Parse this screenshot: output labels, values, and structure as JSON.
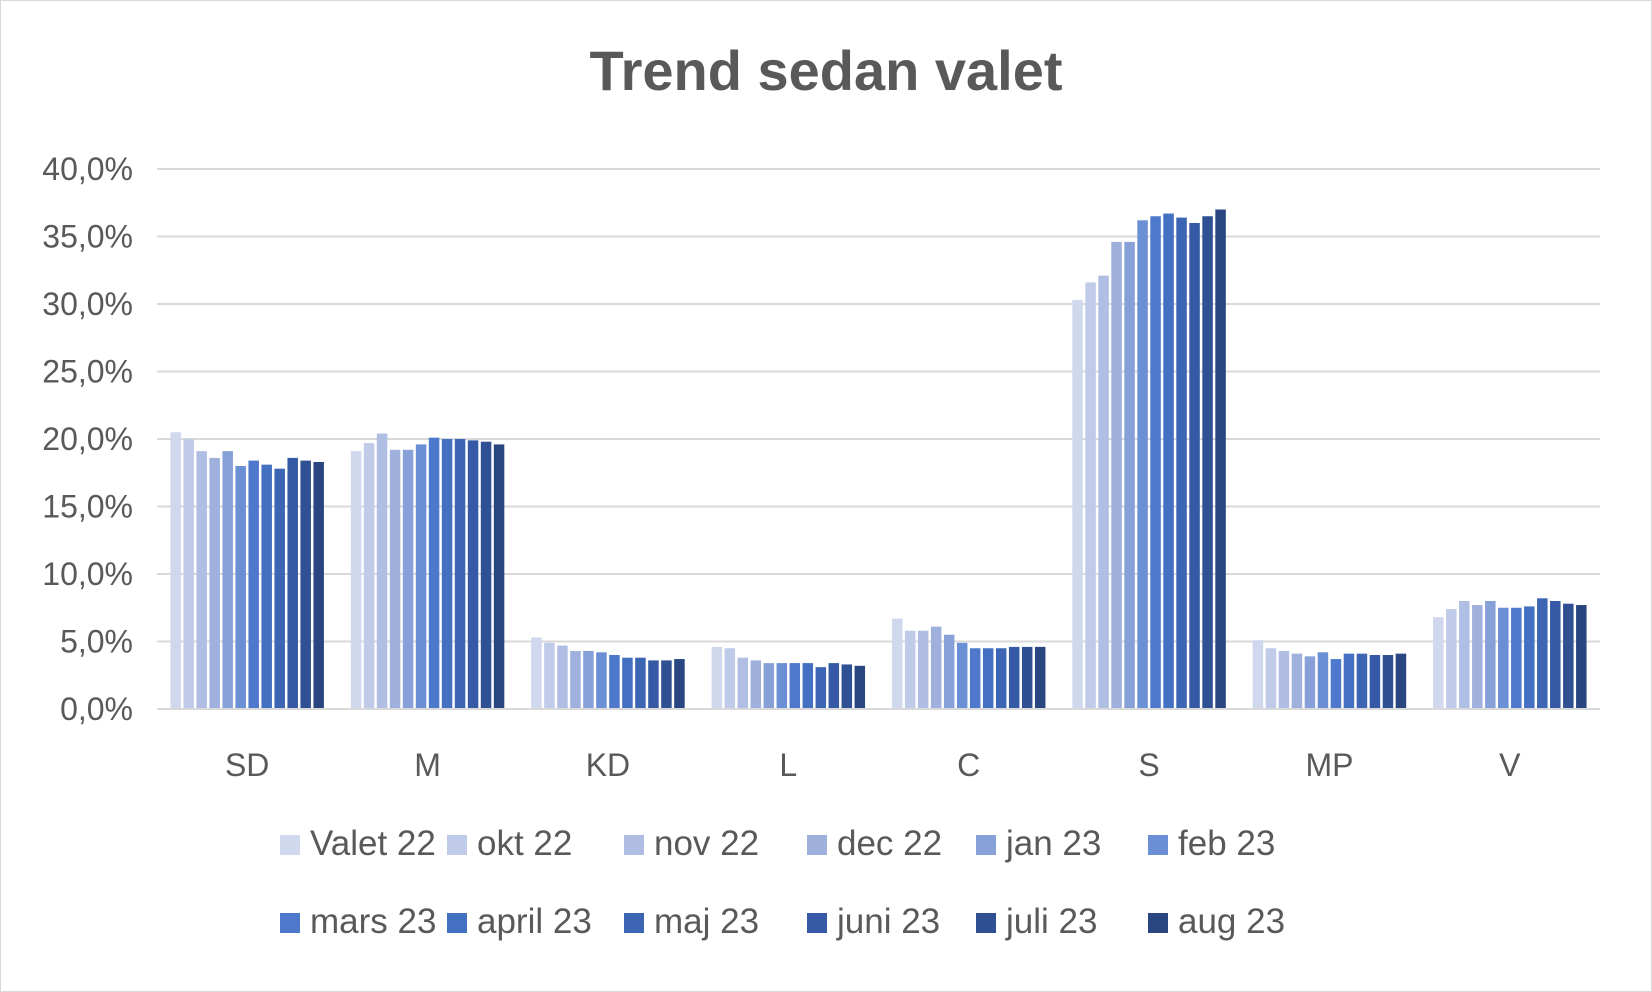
{
  "chart_data": {
    "type": "bar",
    "title": "Trend sedan valet",
    "categories": [
      "SD",
      "M",
      "KD",
      "L",
      "C",
      "S",
      "MP",
      "V"
    ],
    "ylim": [
      0,
      40
    ],
    "yticks": [
      "0,0%",
      "5,0%",
      "10,0%",
      "15,0%",
      "20,0%",
      "25,0%",
      "30,0%",
      "35,0%",
      "40,0%"
    ],
    "grid": true,
    "legend_position": "bottom",
    "series": [
      {
        "name": "Valet 22",
        "color": "#d0d8ee",
        "values": [
          20.5,
          19.1,
          5.3,
          4.6,
          6.7,
          30.3,
          5.1,
          6.8
        ]
      },
      {
        "name": "okt 22",
        "color": "#c0cbe9",
        "values": [
          20.0,
          19.7,
          4.9,
          4.5,
          5.8,
          31.6,
          4.5,
          7.4
        ]
      },
      {
        "name": "nov 22",
        "color": "#b0bee3",
        "values": [
          19.1,
          20.4,
          4.7,
          3.8,
          5.8,
          32.1,
          4.3,
          8.0
        ]
      },
      {
        "name": "dec 22",
        "color": "#9fb0dd",
        "values": [
          18.6,
          19.2,
          4.3,
          3.6,
          6.1,
          34.6,
          4.1,
          7.7
        ]
      },
      {
        "name": "jan 23",
        "color": "#87a0d8",
        "values": [
          19.1,
          19.2,
          4.3,
          3.4,
          5.5,
          34.6,
          3.9,
          8.0
        ]
      },
      {
        "name": "feb 23",
        "color": "#6b8fd4",
        "values": [
          18.0,
          19.6,
          4.2,
          3.4,
          4.9,
          36.2,
          4.2,
          7.5
        ]
      },
      {
        "name": "mars 23",
        "color": "#4d78cc",
        "values": [
          18.4,
          20.1,
          4.0,
          3.4,
          4.5,
          36.5,
          3.7,
          7.5
        ]
      },
      {
        "name": "april 23",
        "color": "#4470c1",
        "values": [
          18.1,
          20.0,
          3.8,
          3.4,
          4.5,
          36.7,
          4.1,
          7.6
        ]
      },
      {
        "name": "maj 23",
        "color": "#3c65b3",
        "values": [
          17.8,
          20.0,
          3.8,
          3.1,
          4.5,
          36.4,
          4.1,
          8.2
        ]
      },
      {
        "name": "juni 23",
        "color": "#3559a4",
        "values": [
          18.6,
          19.9,
          3.6,
          3.4,
          4.6,
          36.0,
          4.0,
          8.0
        ]
      },
      {
        "name": "juli 23",
        "color": "#2f5092",
        "values": [
          18.4,
          19.8,
          3.6,
          3.3,
          4.6,
          36.5,
          4.0,
          7.8
        ]
      },
      {
        "name": "aug 23",
        "color": "#2a4680",
        "values": [
          18.3,
          19.6,
          3.7,
          3.2,
          4.6,
          37.0,
          4.1,
          7.7
        ]
      }
    ]
  }
}
